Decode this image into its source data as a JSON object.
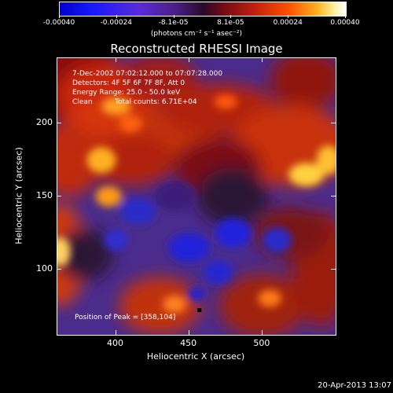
{
  "chart_data": {
    "type": "heatmap",
    "title": "Reconstructed RHESSI Image",
    "xlabel": "Heliocentric X (arcsec)",
    "ylabel": "Heliocentric Y (arcsec)",
    "xlim": [
      360,
      550
    ],
    "ylim": [
      55,
      245
    ],
    "x_ticks": [
      "400",
      "450",
      "500"
    ],
    "y_ticks": [
      "100",
      "150",
      "200"
    ],
    "x_tick_values": [
      400,
      450,
      500
    ],
    "y_tick_values": [
      100,
      150,
      200
    ],
    "colorbar": {
      "ticks": [
        "-0.00040",
        "-0.00024",
        "-8.1e-05",
        "8.1e-05",
        "0.00024",
        "0.00040"
      ],
      "units": "(photons cm⁻² s⁻¹ asec⁻²)",
      "range": [
        -0.0004,
        0.0004
      ]
    },
    "annotations": {
      "time_range": "7-Dec-2002 07:02:12.000 to 07:07:28.000",
      "detectors": "Detectors: 4F 5F 6F 7F 8F, Att 0",
      "energy": "Energy Range: 25.0 - 50.0 keV",
      "clean_label": "Clean",
      "total_counts": "Total counts: 6.71E+04",
      "peak": "Position of Peak = [358,104]"
    },
    "peak_position": [
      358,
      104
    ],
    "peak_marker": [
      457,
      72
    ]
  },
  "date_stamp": "20-Apr-2013 13:07",
  "colors": {
    "background": "#000000",
    "foreground": "#ffffff"
  }
}
